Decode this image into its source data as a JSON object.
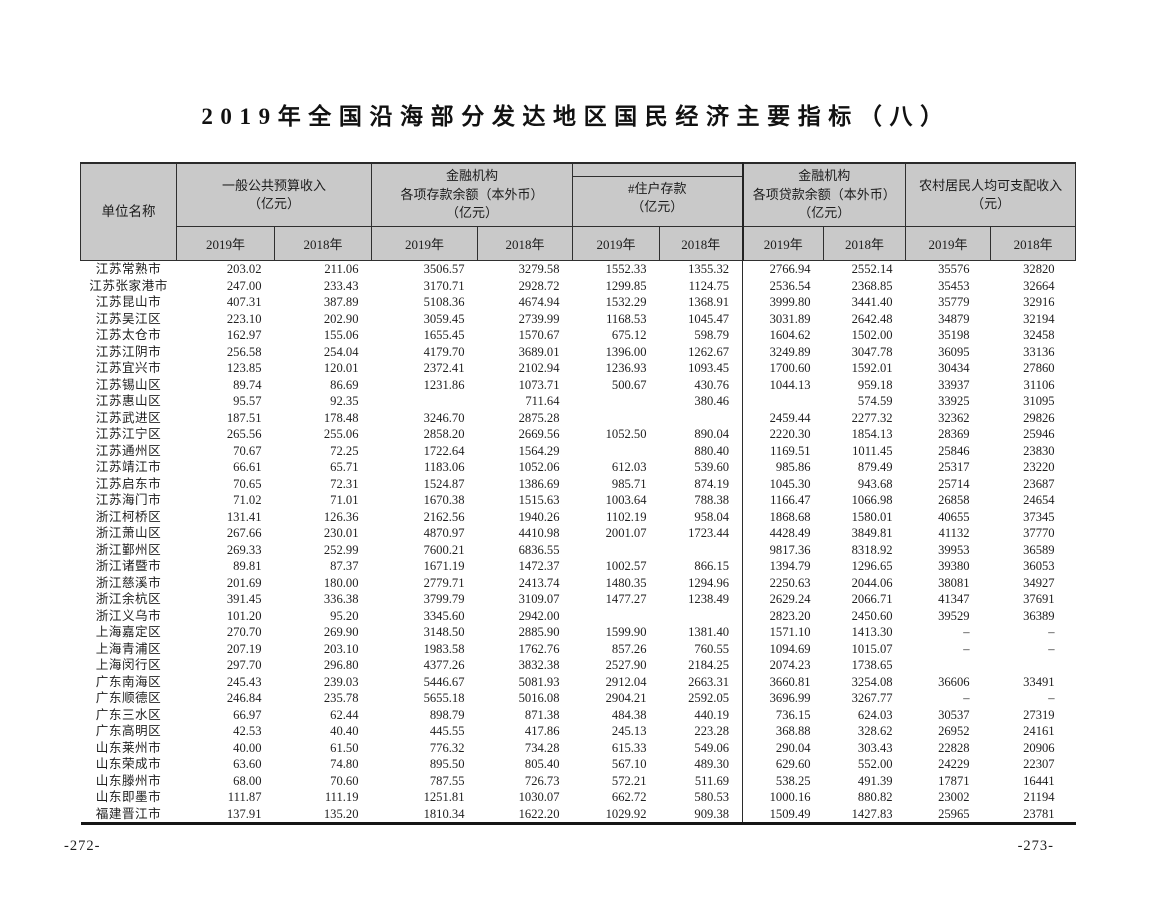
{
  "document": {
    "title": "2019年全国沿海部分发达地区国民经济主要指标（八）",
    "page_number_left": "-272-",
    "page_number_right": "-273-"
  },
  "colors": {
    "header_bg": "#c9c9c9",
    "border": "#2f2f2f",
    "text": "#1f1f1f",
    "page_bg": "#ffffff"
  },
  "table": {
    "name_header": "单位名称",
    "column_groups": [
      {
        "label": "一般公共预算收入\n（亿元）",
        "years": [
          "2019年",
          "2018年"
        ]
      },
      {
        "label": "金融机构\n各项存款余额（本外币）\n（亿元）",
        "years": [
          "2019年",
          "2018年"
        ]
      },
      {
        "label": "#住户存款\n（亿元）",
        "years": [
          "2019年",
          "2018年"
        ]
      },
      {
        "label": "金融机构\n各项贷款余额（本外币）\n（亿元）",
        "years": [
          "2019年",
          "2018年"
        ]
      },
      {
        "label": "农村居民人均可支配收入\n（元）",
        "years": [
          "2019年",
          "2018年"
        ]
      }
    ],
    "rows": [
      {
        "name": "江苏常熟市",
        "values": [
          "203.02",
          "211.06",
          "3506.57",
          "3279.58",
          "1552.33",
          "1355.32",
          "2766.94",
          "2552.14",
          "35576",
          "32820"
        ]
      },
      {
        "name": "江苏张家港市",
        "values": [
          "247.00",
          "233.43",
          "3170.71",
          "2928.72",
          "1299.85",
          "1124.75",
          "2536.54",
          "2368.85",
          "35453",
          "32664"
        ]
      },
      {
        "name": "江苏昆山市",
        "values": [
          "407.31",
          "387.89",
          "5108.36",
          "4674.94",
          "1532.29",
          "1368.91",
          "3999.80",
          "3441.40",
          "35779",
          "32916"
        ]
      },
      {
        "name": "江苏吴江区",
        "values": [
          "223.10",
          "202.90",
          "3059.45",
          "2739.99",
          "1168.53",
          "1045.47",
          "3031.89",
          "2642.48",
          "34879",
          "32194"
        ]
      },
      {
        "name": "江苏太仓市",
        "values": [
          "162.97",
          "155.06",
          "1655.45",
          "1570.67",
          "675.12",
          "598.79",
          "1604.62",
          "1502.00",
          "35198",
          "32458"
        ]
      },
      {
        "name": "江苏江阴市",
        "values": [
          "256.58",
          "254.04",
          "4179.70",
          "3689.01",
          "1396.00",
          "1262.67",
          "3249.89",
          "3047.78",
          "36095",
          "33136"
        ]
      },
      {
        "name": "江苏宜兴市",
        "values": [
          "123.85",
          "120.01",
          "2372.41",
          "2102.94",
          "1236.93",
          "1093.45",
          "1700.60",
          "1592.01",
          "30434",
          "27860"
        ]
      },
      {
        "name": "江苏锡山区",
        "values": [
          "89.74",
          "86.69",
          "1231.86",
          "1073.71",
          "500.67",
          "430.76",
          "1044.13",
          "959.18",
          "33937",
          "31106"
        ]
      },
      {
        "name": "江苏惠山区",
        "values": [
          "95.57",
          "92.35",
          "",
          "711.64",
          "",
          "380.46",
          "",
          "574.59",
          "33925",
          "31095"
        ]
      },
      {
        "name": "江苏武进区",
        "values": [
          "187.51",
          "178.48",
          "3246.70",
          "2875.28",
          "",
          "",
          "2459.44",
          "2277.32",
          "32362",
          "29826"
        ]
      },
      {
        "name": "江苏江宁区",
        "values": [
          "265.56",
          "255.06",
          "2858.20",
          "2669.56",
          "1052.50",
          "890.04",
          "2220.30",
          "1854.13",
          "28369",
          "25946"
        ]
      },
      {
        "name": "江苏通州区",
        "values": [
          "70.67",
          "72.25",
          "1722.64",
          "1564.29",
          "",
          "880.40",
          "1169.51",
          "1011.45",
          "25846",
          "23830"
        ]
      },
      {
        "name": "江苏靖江市",
        "values": [
          "66.61",
          "65.71",
          "1183.06",
          "1052.06",
          "612.03",
          "539.60",
          "985.86",
          "879.49",
          "25317",
          "23220"
        ]
      },
      {
        "name": "江苏启东市",
        "values": [
          "70.65",
          "72.31",
          "1524.87",
          "1386.69",
          "985.71",
          "874.19",
          "1045.30",
          "943.68",
          "25714",
          "23687"
        ]
      },
      {
        "name": "江苏海门市",
        "values": [
          "71.02",
          "71.01",
          "1670.38",
          "1515.63",
          "1003.64",
          "788.38",
          "1166.47",
          "1066.98",
          "26858",
          "24654"
        ]
      },
      {
        "name": "浙江柯桥区",
        "values": [
          "131.41",
          "126.36",
          "2162.56",
          "1940.26",
          "1102.19",
          "958.04",
          "1868.68",
          "1580.01",
          "40655",
          "37345"
        ]
      },
      {
        "name": "浙江萧山区",
        "values": [
          "267.66",
          "230.01",
          "4870.97",
          "4410.98",
          "2001.07",
          "1723.44",
          "4428.49",
          "3849.81",
          "41132",
          "37770"
        ]
      },
      {
        "name": "浙江鄞州区",
        "values": [
          "269.33",
          "252.99",
          "7600.21",
          "6836.55",
          "",
          "",
          "9817.36",
          "8318.92",
          "39953",
          "36589"
        ]
      },
      {
        "name": "浙江诸暨市",
        "values": [
          "89.81",
          "87.37",
          "1671.19",
          "1472.37",
          "1002.57",
          "866.15",
          "1394.79",
          "1296.65",
          "39380",
          "36053"
        ]
      },
      {
        "name": "浙江慈溪市",
        "values": [
          "201.69",
          "180.00",
          "2779.71",
          "2413.74",
          "1480.35",
          "1294.96",
          "2250.63",
          "2044.06",
          "38081",
          "34927"
        ]
      },
      {
        "name": "浙江余杭区",
        "values": [
          "391.45",
          "336.38",
          "3799.79",
          "3109.07",
          "1477.27",
          "1238.49",
          "2629.24",
          "2066.71",
          "41347",
          "37691"
        ]
      },
      {
        "name": "浙江义乌市",
        "values": [
          "101.20",
          "95.20",
          "3345.60",
          "2942.00",
          "",
          "",
          "2823.20",
          "2450.60",
          "39529",
          "36389"
        ]
      },
      {
        "name": "上海嘉定区",
        "values": [
          "270.70",
          "269.90",
          "3148.50",
          "2885.90",
          "1599.90",
          "1381.40",
          "1571.10",
          "1413.30",
          "–",
          "–"
        ]
      },
      {
        "name": "上海青浦区",
        "values": [
          "207.19",
          "203.10",
          "1983.58",
          "1762.76",
          "857.26",
          "760.55",
          "1094.69",
          "1015.07",
          "–",
          "–"
        ]
      },
      {
        "name": "上海闵行区",
        "values": [
          "297.70",
          "296.80",
          "4377.26",
          "3832.38",
          "2527.90",
          "2184.25",
          "2074.23",
          "1738.65",
          "",
          ""
        ]
      },
      {
        "name": "广东南海区",
        "values": [
          "245.43",
          "239.03",
          "5446.67",
          "5081.93",
          "2912.04",
          "2663.31",
          "3660.81",
          "3254.08",
          "36606",
          "33491"
        ]
      },
      {
        "name": "广东顺德区",
        "values": [
          "246.84",
          "235.78",
          "5655.18",
          "5016.08",
          "2904.21",
          "2592.05",
          "3696.99",
          "3267.77",
          "–",
          "–"
        ]
      },
      {
        "name": "广东三水区",
        "values": [
          "66.97",
          "62.44",
          "898.79",
          "871.38",
          "484.38",
          "440.19",
          "736.15",
          "624.03",
          "30537",
          "27319"
        ]
      },
      {
        "name": "广东高明区",
        "values": [
          "42.53",
          "40.40",
          "445.55",
          "417.86",
          "245.13",
          "223.28",
          "368.88",
          "328.62",
          "26952",
          "24161"
        ]
      },
      {
        "name": "山东莱州市",
        "values": [
          "40.00",
          "61.50",
          "776.32",
          "734.28",
          "615.33",
          "549.06",
          "290.04",
          "303.43",
          "22828",
          "20906"
        ]
      },
      {
        "name": "山东荣成市",
        "values": [
          "63.60",
          "74.80",
          "895.50",
          "805.40",
          "567.10",
          "489.30",
          "629.60",
          "552.00",
          "24229",
          "22307"
        ]
      },
      {
        "name": "山东滕州市",
        "values": [
          "68.00",
          "70.60",
          "787.55",
          "726.73",
          "572.21",
          "511.69",
          "538.25",
          "491.39",
          "17871",
          "16441"
        ]
      },
      {
        "name": "山东即墨市",
        "values": [
          "111.87",
          "111.19",
          "1251.81",
          "1030.07",
          "662.72",
          "580.53",
          "1000.16",
          "880.82",
          "23002",
          "21194"
        ]
      },
      {
        "name": "福建晋江市",
        "values": [
          "137.91",
          "135.20",
          "1810.34",
          "1622.20",
          "1029.92",
          "909.38",
          "1509.49",
          "1427.83",
          "25965",
          "23781"
        ]
      }
    ]
  }
}
